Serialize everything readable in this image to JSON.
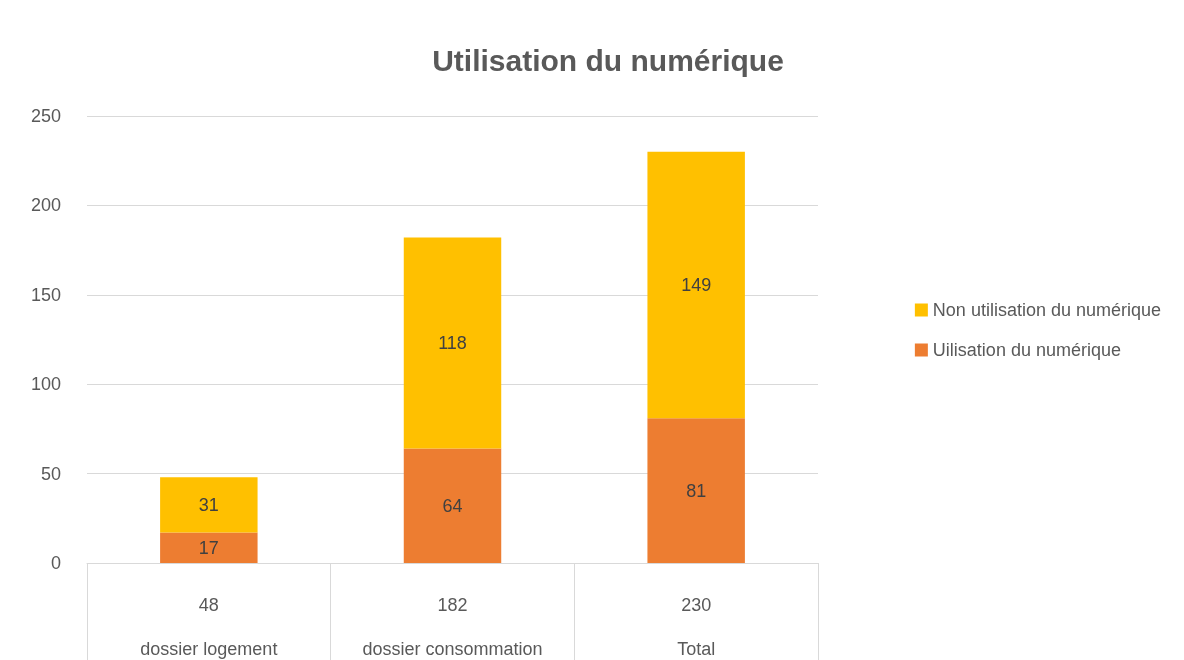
{
  "chart_data": {
    "type": "bar",
    "title": "Utilisation du numérique",
    "categories": [
      "dossier logement",
      "dossier consommation",
      "Total"
    ],
    "stacked": true,
    "series": [
      {
        "name": "Uilisation du numérique",
        "color": "#ed7d31",
        "values": [
          17,
          64,
          81
        ]
      },
      {
        "name": "Non utilisation du numérique",
        "color": "#ffc000",
        "values": [
          31,
          118,
          149
        ]
      }
    ],
    "ylim": [
      0,
      250
    ],
    "yticks": [
      0,
      50,
      100,
      150,
      200,
      250
    ],
    "grid": "y",
    "legend": "right",
    "data_labels": true,
    "totals": [
      "48",
      "182",
      "230"
    ]
  }
}
